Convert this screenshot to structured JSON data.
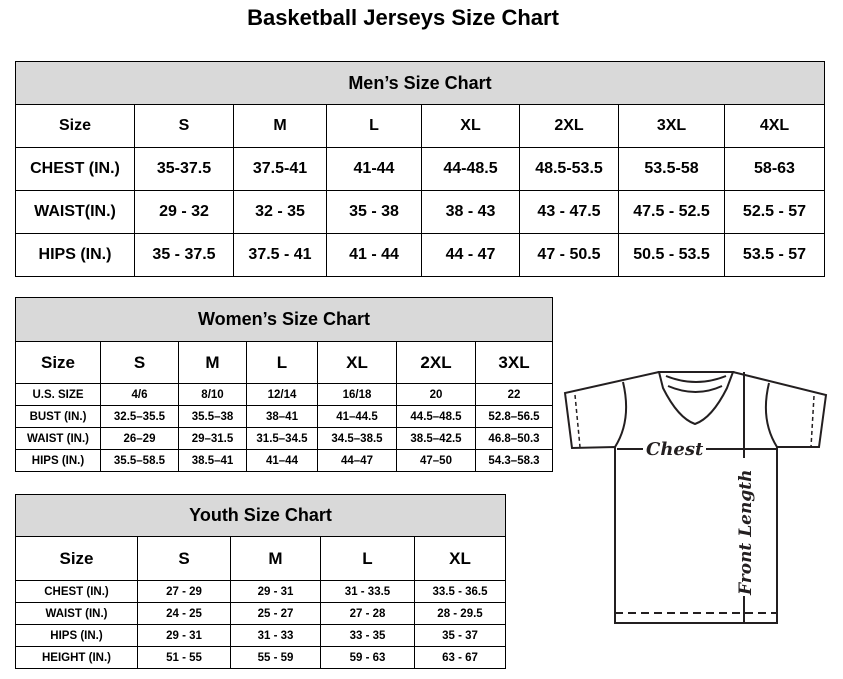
{
  "title": "Basketball Jerseys Size Chart",
  "men": {
    "title": "Men’s Size Chart",
    "header": [
      "Size",
      "S",
      "M",
      "L",
      "XL",
      "2XL",
      "3XL",
      "4XL"
    ],
    "rows": [
      [
        "CHEST (IN.)",
        "35-37.5",
        "37.5-41",
        "41-44",
        "44-48.5",
        "48.5-53.5",
        "53.5-58",
        "58-63"
      ],
      [
        "WAIST(IN.)",
        "29 - 32",
        "32 - 35",
        "35 - 38",
        "38 - 43",
        "43 - 47.5",
        "47.5 - 52.5",
        "52.5 - 57"
      ],
      [
        "HIPS (IN.)",
        "35 - 37.5",
        "37.5 - 41",
        "41 - 44",
        "44 - 47",
        "47 - 50.5",
        "50.5 - 53.5",
        "53.5 - 57"
      ]
    ]
  },
  "women": {
    "title": "Women’s Size Chart",
    "header": [
      "Size",
      "S",
      "M",
      "L",
      "XL",
      "2XL",
      "3XL"
    ],
    "rows": [
      [
        "U.S. SIZE",
        "4/6",
        "8/10",
        "12/14",
        "16/18",
        "20",
        "22"
      ],
      [
        "BUST (IN.)",
        "32.5–35.5",
        "35.5–38",
        "38–41",
        "41–44.5",
        "44.5–48.5",
        "52.8–56.5"
      ],
      [
        "WAIST (IN.)",
        "26–29",
        "29–31.5",
        "31.5–34.5",
        "34.5–38.5",
        "38.5–42.5",
        "46.8–50.3"
      ],
      [
        "HIPS (IN.)",
        "35.5–58.5",
        "38.5–41",
        "41–44",
        "44–47",
        "47–50",
        "54.3–58.3"
      ]
    ]
  },
  "youth": {
    "title": "Youth Size Chart",
    "header": [
      "Size",
      "S",
      "M",
      "L",
      "XL"
    ],
    "rows": [
      [
        "CHEST (IN.)",
        "27 - 29",
        "29 - 31",
        "31 - 33.5",
        "33.5 - 36.5"
      ],
      [
        "WAIST (IN.)",
        "24 - 25",
        "25 - 27",
        "27 - 28",
        "28 - 29.5"
      ],
      [
        "HIPS (IN.)",
        "29 - 31",
        "31 - 33",
        "33 - 35",
        "35 - 37"
      ],
      [
        "HEIGHT (IN.)",
        "51 - 55",
        "55 - 59",
        "59 - 63",
        "63 - 67"
      ]
    ]
  },
  "diagram": {
    "chest_label": "Chest",
    "length_label": "Front Length",
    "icon": "t-shirt-icon"
  }
}
